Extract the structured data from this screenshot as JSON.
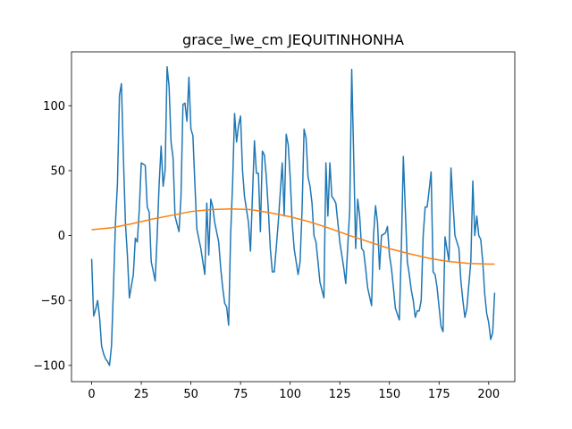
{
  "chart_data": {
    "type": "line",
    "title": "grace_lwe_cm JEQUITINHONHA",
    "xlim": [
      -10.15,
      213.15
    ],
    "xticks": [
      0,
      25,
      50,
      75,
      100,
      125,
      150,
      175,
      200
    ],
    "ylim": [
      -112.5,
      141.5
    ],
    "yticks": [
      -100,
      -50,
      0,
      50,
      100
    ],
    "series": [
      {
        "color": "#1f77b4",
        "x": [
          0,
          1,
          2,
          3,
          4,
          5,
          6,
          7,
          8,
          9,
          10,
          11,
          12,
          13,
          14,
          15,
          16,
          17,
          18,
          19,
          21,
          22,
          23,
          24,
          25,
          26,
          27,
          28,
          29,
          30,
          32,
          33,
          34,
          35,
          36,
          37,
          38,
          39,
          40,
          41,
          42,
          44,
          45,
          46,
          47,
          48,
          49,
          50,
          51,
          52,
          53,
          55,
          56,
          57,
          58,
          59,
          60,
          61,
          62,
          64,
          65,
          66,
          67,
          68,
          69,
          70,
          71,
          72,
          73,
          74,
          75,
          76,
          77,
          79,
          80,
          82,
          83,
          84,
          85,
          86,
          87,
          88,
          89,
          90,
          91,
          92,
          94,
          96,
          97,
          98,
          99,
          100,
          101,
          102,
          104,
          105,
          106,
          107,
          108,
          109,
          110,
          111,
          112,
          113,
          114,
          115,
          117,
          118,
          119,
          120,
          121,
          122,
          123,
          124,
          125,
          126,
          127,
          128,
          130,
          131,
          132,
          133,
          134,
          135,
          136,
          137,
          138,
          139,
          141,
          142,
          143,
          144,
          145,
          146,
          148,
          149,
          150,
          151,
          152,
          153,
          155,
          156,
          157,
          158,
          159,
          160,
          161,
          162,
          163,
          164,
          165,
          166,
          167,
          168,
          169,
          170,
          171,
          172,
          173,
          174,
          175,
          176,
          177,
          178,
          180,
          181,
          182,
          183,
          185,
          186,
          187,
          188,
          189,
          191,
          192,
          193,
          194,
          195,
          196,
          197,
          198,
          199,
          200,
          201,
          202,
          203
        ],
        "values": [
          -18,
          -62,
          -57,
          -50,
          -63,
          -85,
          -91,
          -95,
          -97,
          -100,
          -85,
          -40,
          10,
          40,
          108,
          117,
          60,
          10,
          -15,
          -48,
          -30,
          -2,
          -5,
          20,
          56,
          55,
          54,
          22,
          18,
          -20,
          -35,
          0,
          40,
          69,
          38,
          50,
          130,
          115,
          72,
          60,
          15,
          3,
          30,
          101,
          102,
          88,
          122,
          82,
          77,
          40,
          5,
          -10,
          -20,
          -30,
          25,
          -15,
          28,
          22,
          10,
          -5,
          -25,
          -40,
          -52,
          -55,
          -69,
          0,
          40,
          94,
          72,
          85,
          92,
          50,
          30,
          10,
          -12,
          73,
          48,
          48,
          3,
          65,
          62,
          45,
          20,
          -10,
          -28,
          -28,
          10,
          56,
          15,
          78,
          70,
          45,
          10,
          -10,
          -30,
          -20,
          20,
          82,
          75,
          45,
          38,
          25,
          0,
          -5,
          -20,
          -36,
          -48,
          56,
          15,
          56,
          30,
          28,
          25,
          10,
          -5,
          -15,
          -25,
          -37,
          20,
          128,
          60,
          -10,
          28,
          15,
          -10,
          -12,
          -25,
          -40,
          -54,
          0,
          23,
          10,
          -26,
          0,
          2,
          7,
          -15,
          -25,
          -40,
          -56,
          -65,
          -10,
          61,
          20,
          -20,
          -30,
          -42,
          -50,
          -63,
          -58,
          -58,
          -50,
          0,
          22,
          22,
          35,
          49,
          -28,
          -30,
          -40,
          -55,
          -70,
          -74,
          -1,
          -20,
          52,
          25,
          0,
          -10,
          -35,
          -50,
          -63,
          -56,
          -20,
          42,
          0,
          15,
          0,
          -3,
          -20,
          -45,
          -60,
          -67,
          -80,
          -75,
          -44
        ]
      },
      {
        "color": "#ff7f0e",
        "x": [
          0,
          10,
          20,
          30,
          40,
          50,
          60,
          70,
          80,
          90,
          100,
          110,
          120,
          130,
          140,
          150,
          160,
          170,
          180,
          190,
          200,
          203
        ],
        "values": [
          4.5,
          6,
          9,
          12.5,
          15.5,
          18.5,
          20,
          20.5,
          20,
          17.5,
          14.5,
          10.5,
          5.5,
          0,
          -5,
          -10,
          -14,
          -17.5,
          -20,
          -21.5,
          -22,
          -22
        ]
      }
    ]
  }
}
